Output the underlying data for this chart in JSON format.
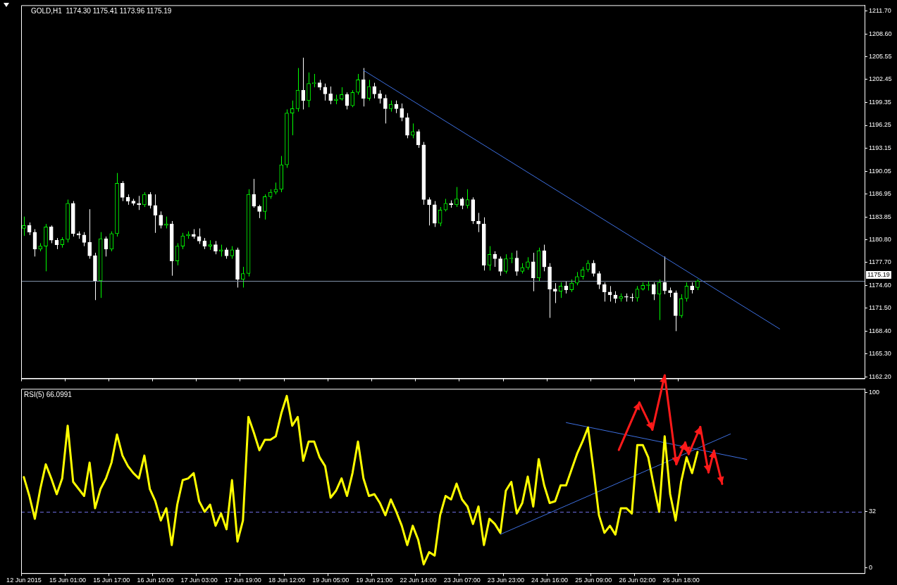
{
  "chart_data": [
    {
      "type": "candlestick",
      "title": "GOLD,H1  1174.30 1175.41 1173.96 1175.19",
      "tick_labels": "y",
      "categories": [
        "12 Jun 2015",
        null,
        null,
        null,
        null,
        null,
        null,
        null,
        "15 Jun 01:00",
        null,
        null,
        null,
        null,
        null,
        null,
        null,
        "15 Jun 17:00",
        null,
        null,
        null,
        null,
        null,
        null,
        null,
        "16 Jun 10:00",
        null,
        null,
        null,
        null,
        null,
        null,
        null,
        "17 Jun 03:00",
        null,
        null,
        null,
        null,
        null,
        null,
        null,
        "17 Jun 19:00",
        null,
        null,
        null,
        null,
        null,
        null,
        null,
        "18 Jun 12:00",
        null,
        null,
        null,
        null,
        null,
        null,
        null,
        "19 Jun 05:00",
        null,
        null,
        null,
        null,
        null,
        null,
        null,
        "19 Jun 21:00",
        null,
        null,
        null,
        null,
        null,
        null,
        null,
        "22 Jun 14:00",
        null,
        null,
        null,
        null,
        null,
        null,
        null,
        "23 Jun 07:00",
        null,
        null,
        null,
        null,
        null,
        null,
        null,
        "23 Jun 23:00",
        null,
        null,
        null,
        null,
        null,
        null,
        null,
        "24 Jun 16:00",
        null,
        null,
        null,
        null,
        null,
        null,
        null,
        "25 Jun 09:00",
        null,
        null,
        null,
        null,
        null,
        null,
        null,
        "26 Jun 02:00",
        null,
        null,
        null,
        null,
        null,
        null,
        null,
        "26 Jun 18:00",
        null,
        null,
        null,
        null,
        null,
        null,
        null,
        null,
        null,
        null,
        null,
        null,
        null,
        null,
        null,
        null,
        null,
        null,
        null,
        null,
        null,
        null,
        null,
        null,
        null,
        null,
        null,
        null,
        null,
        null,
        null,
        null,
        null
      ],
      "colors": [
        "#00ff00",
        "#ffffff",
        "#ffffff",
        "#00ff00",
        "#00ff00",
        "#ffffff",
        "#ffffff",
        "#00ff00",
        "#00ff00",
        "#ffffff",
        "#ffffff",
        "#ffffff",
        "#ffffff",
        "#ffffff",
        "#00ff00",
        "#ffffff",
        "#00ff00",
        "#00ff00",
        "#ffffff",
        "#ffffff",
        "#ffffff",
        "#ffffff",
        "#00ff00",
        "#ffffff",
        "#ffffff",
        "#ffffff",
        "#00ff00",
        "#ffffff",
        "#00ff00",
        "#00ff00",
        "#00ff00",
        "#ffffff",
        "#ffffff",
        "#ffffff",
        "#00ff00",
        "#ffffff",
        "#00ff00",
        "#ffffff",
        "#00ff00",
        "#ffffff",
        "#00ff00",
        "#00ff00",
        "#ffffff",
        "#ffffff",
        "#00ff00",
        "#00ff00",
        "#00ff00",
        "#00ff00",
        "#00ff00",
        "#00ff00",
        "#00ff00",
        "#ffffff",
        "#00ff00",
        "#00ff00",
        "#ffffff",
        "#ffffff",
        "#ffffff",
        "#00ff00",
        "#00ff00",
        "#ffffff",
        "#00ff00",
        "#00ff00",
        "#ffffff",
        "#00ff00",
        "#ffffff",
        "#ffffff",
        "#ffffff",
        "#00ff00",
        "#ffffff",
        "#ffffff",
        "#ffffff",
        "#00ff00",
        "#ffffff",
        "#ffffff",
        "#ffffff",
        "#ffffff",
        "#00ff00",
        "#00ff00",
        "#ffffff",
        "#00ff00",
        "#ffffff",
        "#00ff00",
        "#ffffff",
        "#ffffff",
        "#ffffff",
        "#00ff00",
        "#ffffff",
        "#ffffff",
        "#00ff00",
        "#00ff00",
        "#ffffff",
        "#00ff00",
        "#00ff00",
        "#ffffff",
        "#00ff00",
        "#ffffff",
        "#ffffff",
        "#ffffff",
        "#00ff00",
        "#ffffff",
        "#00ff00",
        "#00ff00",
        "#00ff00",
        "#00ff00",
        "#ffffff",
        "#ffffff",
        "#ffffff",
        "#ffffff",
        "#ffffff",
        "#00ff00",
        "#ffffff",
        "#ffffff",
        "#00ff00",
        "#00ff00",
        "#00ff00",
        "#ffffff",
        "#00ff00",
        "#ffffff",
        "#ffffff",
        "#ffffff",
        "#00ff00",
        "#00ff00",
        "#ffffff",
        "#00ff00",
        null,
        null,
        null,
        null,
        null,
        null,
        null,
        null,
        null,
        null,
        null,
        null,
        null,
        null,
        null,
        null,
        null,
        null,
        null,
        null,
        null,
        null,
        null,
        null,
        null,
        null,
        null,
        null,
        null,
        null
      ],
      "ohlc": [
        [
          1182.3,
          1183.9,
          1181.3,
          1182.7
        ],
        [
          1182.7,
          1183.1,
          1181.4,
          1181.8
        ],
        [
          1181.8,
          1182.2,
          1178.5,
          1179.5
        ],
        [
          1179.5,
          1180.3,
          1179.2,
          1179.9
        ],
        [
          1179.9,
          1182.9,
          1176.5,
          1182.5
        ],
        [
          1182.5,
          1182.7,
          1180.3,
          1180.7
        ],
        [
          1180.7,
          1181.0,
          1179.5,
          1180.1
        ],
        [
          1180.1,
          1181.1,
          1179.7,
          1180.8
        ],
        [
          1180.8,
          1186.2,
          1180.4,
          1185.7
        ],
        [
          1185.7,
          1186.0,
          1181.2,
          1181.6
        ],
        [
          1181.6,
          1181.9,
          1180.9,
          1181.4
        ],
        [
          1181.4,
          1181.8,
          1179.9,
          1180.4
        ],
        [
          1180.4,
          1184.9,
          1178.2,
          1178.6
        ],
        [
          1178.6,
          1179.0,
          1172.6,
          1175.2
        ],
        [
          1175.2,
          1181.8,
          1172.9,
          1180.9
        ],
        [
          1180.9,
          1181.2,
          1178.5,
          1179.5
        ],
        [
          1179.5,
          1181.9,
          1179.2,
          1181.6
        ],
        [
          1181.6,
          1189.8,
          1181.2,
          1188.4
        ],
        [
          1188.4,
          1188.7,
          1186.0,
          1186.5
        ],
        [
          1186.5,
          1186.9,
          1185.5,
          1186.0
        ],
        [
          1186.0,
          1186.3,
          1185.4,
          1185.7
        ],
        [
          1185.7,
          1186.7,
          1184.8,
          1185.5
        ],
        [
          1185.5,
          1187.2,
          1185.2,
          1186.9
        ],
        [
          1186.9,
          1187.2,
          1185.0,
          1185.4
        ],
        [
          1185.4,
          1186.9,
          1181.7,
          1184.1
        ],
        [
          1184.1,
          1184.6,
          1182.3,
          1182.7
        ],
        [
          1182.7,
          1183.9,
          1182.3,
          1182.9
        ],
        [
          1182.9,
          1183.3,
          1175.9,
          1177.9
        ],
        [
          1177.9,
          1180.3,
          1177.3,
          1179.9
        ],
        [
          1179.9,
          1181.7,
          1179.5,
          1181.3
        ],
        [
          1181.3,
          1181.9,
          1180.9,
          1181.5
        ],
        [
          1181.5,
          1182.2,
          1180.9,
          1181.2
        ],
        [
          1181.2,
          1182.3,
          1180.2,
          1180.6
        ],
        [
          1180.6,
          1181.0,
          1179.5,
          1179.9
        ],
        [
          1179.9,
          1180.7,
          1179.4,
          1180.1
        ],
        [
          1180.1,
          1180.6,
          1178.8,
          1179.2
        ],
        [
          1179.2,
          1180.1,
          1178.5,
          1179.4
        ],
        [
          1179.4,
          1179.7,
          1178.2,
          1178.6
        ],
        [
          1178.6,
          1179.9,
          1178.2,
          1179.4
        ],
        [
          1179.4,
          1179.7,
          1174.3,
          1175.4
        ],
        [
          1175.4,
          1177.1,
          1174.3,
          1176.2
        ],
        [
          1176.2,
          1187.6,
          1175.8,
          1186.9
        ],
        [
          1186.9,
          1189.0,
          1185.1,
          1185.3
        ],
        [
          1185.3,
          1185.5,
          1183.7,
          1184.6
        ],
        [
          1184.6,
          1186.9,
          1183.5,
          1186.6
        ],
        [
          1186.6,
          1187.6,
          1186.3,
          1187.2
        ],
        [
          1187.2,
          1188.5,
          1186.9,
          1187.6
        ],
        [
          1187.6,
          1192.1,
          1187.2,
          1190.9
        ],
        [
          1190.9,
          1198.4,
          1190.5,
          1197.9
        ],
        [
          1197.9,
          1199.6,
          1194.9,
          1198.5
        ],
        [
          1198.5,
          1204.0,
          1198.1,
          1201.0
        ],
        [
          1201.0,
          1205.4,
          1198.4,
          1199.6
        ],
        [
          1199.6,
          1203.4,
          1198.7,
          1201.9
        ],
        [
          1201.9,
          1203.2,
          1201.4,
          1202.0
        ],
        [
          1202.0,
          1202.4,
          1201.0,
          1201.4
        ],
        [
          1201.4,
          1201.9,
          1199.6,
          1200.5
        ],
        [
          1200.5,
          1201.5,
          1199.1,
          1199.6
        ],
        [
          1199.6,
          1200.4,
          1199.1,
          1199.8
        ],
        [
          1199.8,
          1201.4,
          1199.6,
          1200.4
        ],
        [
          1200.4,
          1200.7,
          1198.4,
          1198.9
        ],
        [
          1198.9,
          1201.0,
          1198.7,
          1200.7
        ],
        [
          1200.7,
          1203.2,
          1200.4,
          1202.4
        ],
        [
          1202.4,
          1204.0,
          1198.8,
          1199.9
        ],
        [
          1199.9,
          1202.4,
          1199.6,
          1201.5
        ],
        [
          1201.5,
          1202.0,
          1199.9,
          1200.5
        ],
        [
          1200.5,
          1201.0,
          1199.2,
          1199.9
        ],
        [
          1199.9,
          1200.4,
          1196.5,
          1198.5
        ],
        [
          1198.5,
          1199.6,
          1198.1,
          1199.1
        ],
        [
          1199.1,
          1199.6,
          1197.9,
          1198.5
        ],
        [
          1198.5,
          1199.2,
          1196.8,
          1197.3
        ],
        [
          1197.3,
          1197.9,
          1194.5,
          1194.9
        ],
        [
          1194.9,
          1196.5,
          1194.5,
          1195.4
        ],
        [
          1195.4,
          1195.7,
          1193.2,
          1193.6
        ],
        [
          1193.6,
          1194.0,
          1185.5,
          1186.2
        ],
        [
          1186.2,
          1186.5,
          1182.7,
          1185.5
        ],
        [
          1185.5,
          1186.0,
          1182.5,
          1183.0
        ],
        [
          1183.0,
          1185.2,
          1182.6,
          1184.8
        ],
        [
          1184.8,
          1186.3,
          1184.6,
          1185.7
        ],
        [
          1185.7,
          1186.1,
          1185.1,
          1185.5
        ],
        [
          1185.5,
          1187.9,
          1185.2,
          1186.3
        ],
        [
          1186.3,
          1186.5,
          1184.9,
          1185.4
        ],
        [
          1185.4,
          1187.6,
          1185.0,
          1186.2
        ],
        [
          1186.2,
          1186.5,
          1182.9,
          1183.3
        ],
        [
          1183.3,
          1184.4,
          1181.8,
          1182.9
        ],
        [
          1182.9,
          1183.8,
          1176.6,
          1177.3
        ],
        [
          1177.3,
          1179.9,
          1176.6,
          1178.8
        ],
        [
          1178.8,
          1179.2,
          1177.1,
          1178.2
        ],
        [
          1178.2,
          1178.5,
          1175.9,
          1176.5
        ],
        [
          1176.5,
          1178.8,
          1176.2,
          1178.2
        ],
        [
          1178.2,
          1179.0,
          1177.6,
          1178.3
        ],
        [
          1178.3,
          1179.3,
          1175.9,
          1176.5
        ],
        [
          1176.5,
          1177.6,
          1176.2,
          1177.0
        ],
        [
          1177.0,
          1178.4,
          1176.7,
          1177.8
        ],
        [
          1177.8,
          1179.0,
          1173.8,
          1175.6
        ],
        [
          1175.6,
          1179.7,
          1175.2,
          1179.3
        ],
        [
          1179.3,
          1180.1,
          1176.5,
          1177.1
        ],
        [
          1177.1,
          1177.6,
          1170.2,
          1174.1
        ],
        [
          1174.1,
          1174.9,
          1172.2,
          1173.8
        ],
        [
          1173.8,
          1175.0,
          1172.9,
          1174.5
        ],
        [
          1174.5,
          1175.2,
          1173.5,
          1174.0
        ],
        [
          1174.0,
          1175.4,
          1173.7,
          1174.9
        ],
        [
          1174.9,
          1176.4,
          1174.6,
          1175.8
        ],
        [
          1175.8,
          1177.1,
          1175.4,
          1176.7
        ],
        [
          1176.7,
          1178.0,
          1176.4,
          1177.6
        ],
        [
          1177.6,
          1178.0,
          1175.8,
          1176.2
        ],
        [
          1176.2,
          1176.5,
          1174.1,
          1174.7
        ],
        [
          1174.7,
          1175.0,
          1172.4,
          1173.7
        ],
        [
          1173.7,
          1174.5,
          1172.4,
          1173.3
        ],
        [
          1173.3,
          1173.8,
          1172.2,
          1172.8
        ],
        [
          1172.8,
          1173.5,
          1172.4,
          1173.1
        ],
        [
          1173.1,
          1173.5,
          1172.4,
          1173.0
        ],
        [
          1173.0,
          1173.5,
          1172.4,
          1172.9
        ],
        [
          1172.9,
          1174.5,
          1172.4,
          1174.1
        ],
        [
          1174.1,
          1175.0,
          1173.9,
          1174.6
        ],
        [
          1174.6,
          1175.2,
          1173.9,
          1174.7
        ],
        [
          1174.7,
          1175.0,
          1172.6,
          1173.4
        ],
        [
          1173.4,
          1175.4,
          1169.9,
          1175.0
        ],
        [
          1175.0,
          1178.5,
          1173.4,
          1173.9
        ],
        [
          1173.9,
          1174.3,
          1173.0,
          1173.6
        ],
        [
          1173.6,
          1173.9,
          1168.4,
          1170.5
        ],
        [
          1170.5,
          1173.4,
          1170.2,
          1172.8
        ],
        [
          1172.8,
          1175.0,
          1172.4,
          1174.5
        ],
        [
          1174.5,
          1175.0,
          1173.5,
          1174.0
        ],
        [
          1174.3,
          1175.41,
          1173.96,
          1175.19
        ],
        null,
        null,
        null,
        null,
        null,
        null,
        null,
        null,
        null,
        null,
        null,
        null,
        null,
        null,
        null,
        null,
        null,
        null,
        null,
        null,
        null,
        null,
        null,
        null,
        null,
        null,
        null,
        null,
        null,
        null
      ],
      "series": [
        {
          "type": "line",
          "color": "#3d6fe0",
          "values": [
            null,
            null,
            null,
            null,
            null,
            null,
            null,
            null,
            null,
            null,
            null,
            null,
            null,
            null,
            null,
            null,
            null,
            null,
            null,
            null,
            null,
            null,
            null,
            null,
            null,
            null,
            null,
            null,
            null,
            null,
            null,
            null,
            null,
            null,
            null,
            null,
            null,
            null,
            null,
            null,
            null,
            null,
            null,
            null,
            null,
            null,
            null,
            null,
            null,
            null,
            null,
            null,
            null,
            null,
            null,
            null,
            null,
            null,
            null,
            null,
            null,
            null,
            1203.7,
            null,
            null,
            null,
            null,
            null,
            null,
            null,
            null,
            null,
            null,
            null,
            null,
            null,
            null,
            null,
            null,
            null,
            null,
            null,
            null,
            null,
            null,
            null,
            null,
            null,
            null,
            null,
            null,
            null,
            null,
            null,
            null,
            null,
            null,
            null,
            null,
            null,
            null,
            null,
            null,
            null,
            null,
            null,
            null,
            null,
            null,
            null,
            null,
            null,
            null,
            null,
            null,
            null,
            null,
            null,
            null,
            null,
            null,
            null,
            null,
            null,
            null,
            null,
            null,
            null,
            null,
            null,
            null,
            null,
            null,
            null,
            null,
            null,
            null,
            null,
            1168.7,
            null,
            null,
            null,
            null,
            null,
            null,
            null,
            null,
            null,
            null,
            null,
            null,
            null,
            null,
            null
          ]
        }
      ],
      "ylim": [
        1162.0,
        1212.5
      ],
      "yticks": [
        {
          "value": 1162.2,
          "label": "1162.20"
        },
        {
          "value": 1165.3,
          "label": "1165.30"
        },
        {
          "value": 1168.4,
          "label": "1168.40"
        },
        {
          "value": 1171.5,
          "label": "1171.50"
        },
        {
          "value": 1174.6,
          "label": "1174.60"
        },
        {
          "value": 1177.7,
          "label": "1177.70"
        },
        {
          "value": 1180.8,
          "label": "1180.80"
        },
        {
          "value": 1183.85,
          "label": "1183.85"
        },
        {
          "value": 1186.95,
          "label": "1186.95"
        },
        {
          "value": 1190.05,
          "label": "1190.05"
        },
        {
          "value": 1193.15,
          "label": "1193.15"
        },
        {
          "value": 1196.25,
          "label": "1196.25"
        },
        {
          "value": 1199.35,
          "label": "1199.35"
        },
        {
          "value": 1202.45,
          "label": "1202.45"
        },
        {
          "value": 1205.55,
          "label": "1205.55"
        },
        {
          "value": 1208.6,
          "label": "1208.60"
        },
        {
          "value": 1211.7,
          "label": "1211.70"
        }
      ],
      "ref_lines": [
        {
          "axis": "y",
          "value": 1175.19,
          "label": "1175.19",
          "color": "#8090a8"
        }
      ]
    },
    {
      "type": "line",
      "title": "RSI(5) 66.0991",
      "categories": [
        "12 Jun 2015",
        null,
        null,
        null,
        null,
        null,
        null,
        null,
        "15 Jun 01:00",
        null,
        null,
        null,
        null,
        null,
        null,
        null,
        "15 Jun 17:00",
        null,
        null,
        null,
        null,
        null,
        null,
        null,
        "16 Jun 10:00",
        null,
        null,
        null,
        null,
        null,
        null,
        null,
        "17 Jun 03:00",
        null,
        null,
        null,
        null,
        null,
        null,
        null,
        "17 Jun 19:00",
        null,
        null,
        null,
        null,
        null,
        null,
        null,
        "18 Jun 12:00",
        null,
        null,
        null,
        null,
        null,
        null,
        null,
        "19 Jun 05:00",
        null,
        null,
        null,
        null,
        null,
        null,
        null,
        "19 Jun 21:00",
        null,
        null,
        null,
        null,
        null,
        null,
        null,
        "22 Jun 14:00",
        null,
        null,
        null,
        null,
        null,
        null,
        null,
        "23 Jun 07:00",
        null,
        null,
        null,
        null,
        null,
        null,
        null,
        "23 Jun 23:00",
        null,
        null,
        null,
        null,
        null,
        null,
        null,
        "24 Jun 16:00",
        null,
        null,
        null,
        null,
        null,
        null,
        null,
        "25 Jun 09:00",
        null,
        null,
        null,
        null,
        null,
        null,
        null,
        "26 Jun 02:00",
        null,
        null,
        null,
        null,
        null,
        null,
        null,
        "26 Jun 18:00",
        null,
        null,
        null,
        null,
        null,
        null,
        null,
        null,
        null,
        null,
        null,
        null,
        null,
        null,
        null,
        null,
        null,
        null,
        null,
        null,
        null,
        null,
        null,
        null,
        null,
        null,
        null,
        null,
        null,
        null,
        null,
        null,
        null
      ],
      "series": [
        {
          "color": "#ffff00",
          "values": [
            51.7,
            41,
            28,
            45,
            59,
            51,
            42,
            51,
            81,
            49,
            45,
            41,
            60,
            34,
            45,
            51,
            60,
            76,
            64,
            58,
            54,
            51,
            64,
            45,
            38,
            27,
            34,
            13,
            36,
            50,
            51,
            54,
            38,
            32,
            36,
            24,
            31,
            22,
            50,
            15,
            27,
            86,
            77,
            67,
            73,
            73,
            75,
            88,
            98,
            81,
            86,
            61,
            72,
            72,
            63,
            58,
            40,
            44,
            51,
            41,
            54,
            72,
            51,
            41,
            42,
            37,
            30,
            39,
            32,
            24,
            13,
            24,
            16,
            2,
            9,
            7,
            30,
            41,
            39,
            48,
            39,
            35,
            25,
            35,
            13,
            28,
            25,
            20,
            44,
            49,
            31,
            37,
            52,
            35,
            62,
            47,
            37,
            38,
            47,
            47,
            56,
            65,
            72,
            80,
            56,
            30,
            20,
            24,
            19,
            34,
            34,
            31,
            70,
            70,
            63,
            47,
            32,
            75,
            42,
            27,
            49,
            63,
            54,
            66.0991,
            null,
            null,
            null,
            null,
            null,
            null,
            null,
            null,
            null,
            null,
            null,
            null,
            null,
            null,
            null,
            null,
            null,
            null,
            null,
            null,
            null,
            null,
            null,
            null,
            null,
            null,
            null,
            null,
            null,
            null
          ]
        },
        {
          "type": "line",
          "color": "#3d6fe0",
          "values": [
            null,
            null,
            null,
            null,
            null,
            null,
            null,
            null,
            null,
            null,
            null,
            null,
            null,
            null,
            null,
            null,
            null,
            null,
            null,
            null,
            null,
            null,
            null,
            null,
            null,
            null,
            null,
            null,
            null,
            null,
            null,
            null,
            null,
            null,
            null,
            null,
            null,
            null,
            null,
            null,
            null,
            null,
            null,
            null,
            null,
            null,
            null,
            null,
            null,
            null,
            null,
            null,
            null,
            null,
            null,
            null,
            null,
            null,
            null,
            null,
            null,
            null,
            null,
            null,
            null,
            null,
            null,
            null,
            null,
            null,
            null,
            null,
            null,
            null,
            null,
            null,
            null,
            null,
            null,
            null,
            null,
            null,
            null,
            null,
            null,
            null,
            null,
            null,
            null,
            null,
            null,
            null,
            null,
            null,
            null,
            null,
            null,
            null,
            null,
            82.8,
            null,
            null,
            null,
            null,
            null,
            null,
            null,
            null,
            null,
            null,
            null,
            null,
            null,
            null,
            null,
            null,
            null,
            null,
            null,
            null,
            null,
            null,
            null,
            null,
            null,
            null,
            null,
            null,
            null,
            null,
            null,
            null,
            61.8,
            null,
            null,
            null,
            null,
            null,
            null,
            null,
            null,
            null,
            null,
            null,
            null,
            null,
            null,
            null,
            null,
            null,
            null,
            null,
            null,
            null
          ]
        },
        {
          "type": "line",
          "color": "#3d6fe0",
          "values": [
            null,
            null,
            null,
            null,
            null,
            null,
            null,
            null,
            null,
            null,
            null,
            null,
            null,
            null,
            null,
            null,
            null,
            null,
            null,
            null,
            null,
            null,
            null,
            null,
            null,
            null,
            null,
            null,
            null,
            null,
            null,
            null,
            null,
            null,
            null,
            null,
            null,
            null,
            null,
            null,
            null,
            null,
            null,
            null,
            null,
            null,
            null,
            null,
            null,
            null,
            null,
            null,
            null,
            null,
            null,
            null,
            null,
            null,
            null,
            null,
            null,
            null,
            null,
            null,
            null,
            null,
            null,
            null,
            null,
            null,
            null,
            null,
            null,
            null,
            null,
            null,
            null,
            null,
            null,
            null,
            null,
            null,
            null,
            null,
            null,
            null,
            null,
            19.1,
            null,
            null,
            null,
            null,
            null,
            null,
            null,
            null,
            null,
            null,
            null,
            null,
            null,
            null,
            null,
            null,
            null,
            null,
            null,
            null,
            null,
            null,
            null,
            null,
            null,
            null,
            null,
            null,
            null,
            null,
            null,
            null,
            null,
            null,
            null,
            null,
            null,
            null,
            null,
            null,
            null,
            76.3,
            null,
            null,
            null,
            null,
            null,
            null,
            null,
            null,
            null,
            null,
            null,
            null,
            null,
            null,
            null,
            null,
            null,
            null,
            null,
            null,
            null,
            null,
            null,
            null
          ]
        }
      ],
      "ylim": [
        -3,
        102
      ],
      "yticks": [
        0,
        32,
        100
      ],
      "ref_lines": [
        {
          "axis": "y",
          "value": 32,
          "color": "#6d6de0",
          "line_style": "dashed"
        }
      ]
    }
  ]
}
